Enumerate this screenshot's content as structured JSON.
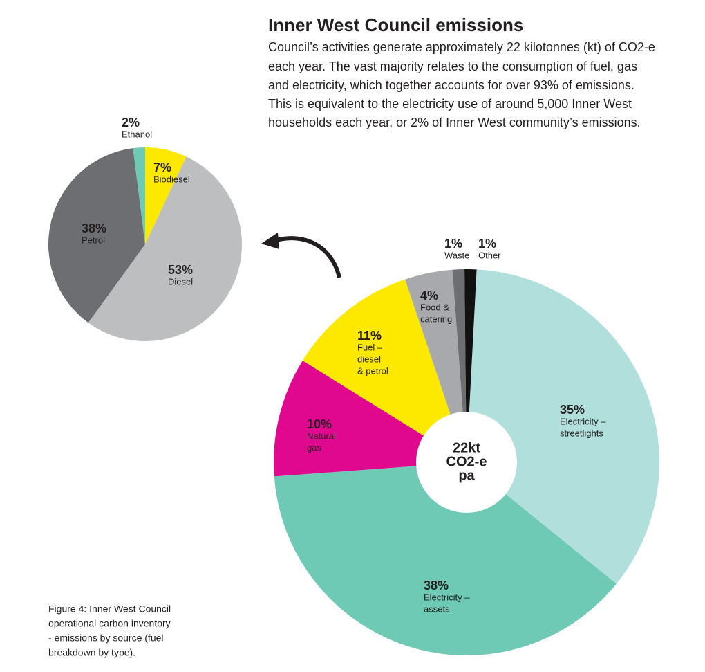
{
  "header": {
    "title": "Inner West Council emissions",
    "description": [
      "Council’s activities generate approximately 22 kilotonnes (kt) of CO2-e",
      "each year. The vast majority relates to the consumption of fuel, gas",
      "and electricity, which together accounts for over 93% of emissions.",
      "This is equivalent to the electricity use of around 5,000 Inner West",
      "households each year, or 2% of Inner West community’s emissions."
    ]
  },
  "caption": [
    "Figure 4: Inner West Council",
    "operational carbon inventory",
    "- emissions by source (fuel",
    "breakdown by type)."
  ],
  "chart_data": [
    {
      "type": "donut",
      "center_label": [
        "22kt",
        "CO2-e",
        "pa"
      ],
      "categories": [
        [
          "Electricity –",
          "streetlights"
        ],
        [
          "Electricity –",
          "assets"
        ],
        [
          "Natural",
          "gas"
        ],
        [
          "Fuel –",
          "diesel",
          "& petrol"
        ],
        [
          "Food &",
          "catering"
        ],
        [
          "Waste"
        ],
        [
          "Other"
        ]
      ],
      "values": [
        35,
        38,
        10,
        11,
        4,
        1,
        1
      ],
      "value_labels": [
        "35%",
        "38%",
        "10%",
        "11%",
        "4%",
        "1%",
        "1%"
      ],
      "colors": [
        "#b0dfdc",
        "#6ecab5",
        "#e0088e",
        "#fde800",
        "#a7a9ac",
        "#6d6e71",
        "#111111"
      ]
    },
    {
      "type": "pie",
      "categories": [
        [
          "Biodiesel"
        ],
        [
          "Diesel"
        ],
        [
          "Petrol"
        ],
        [
          "Ethanol"
        ]
      ],
      "values": [
        7,
        53,
        38,
        2
      ],
      "value_labels": [
        "7%",
        "53%",
        "38%",
        "2%"
      ],
      "colors": [
        "#fde800",
        "#bcbec0",
        "#6d6e71",
        "#6ecab5"
      ]
    }
  ]
}
